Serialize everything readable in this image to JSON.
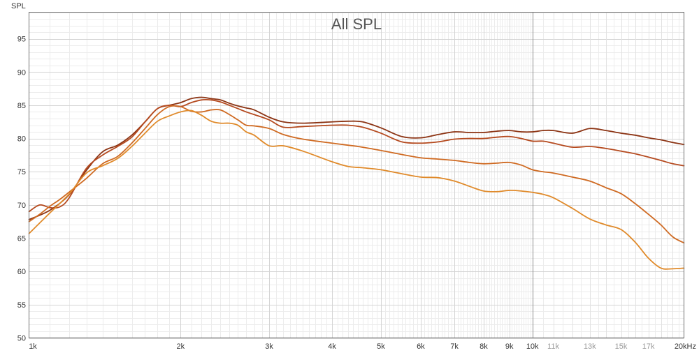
{
  "chart_data": {
    "type": "line",
    "title": "All SPL",
    "ylabel": "SPL",
    "xlabel": "",
    "x_scale": "log",
    "xlim": [
      1000,
      20000
    ],
    "ylim": [
      50,
      99
    ],
    "grid": true,
    "legend": "none",
    "y_ticks": [
      {
        "value": 50,
        "label": "50"
      },
      {
        "value": 55,
        "label": "55"
      },
      {
        "value": 60,
        "label": "60"
      },
      {
        "value": 65,
        "label": "65"
      },
      {
        "value": 70,
        "label": "70"
      },
      {
        "value": 75,
        "label": "75"
      },
      {
        "value": 80,
        "label": "80"
      },
      {
        "value": 85,
        "label": "85"
      },
      {
        "value": 90,
        "label": "90"
      },
      {
        "value": 95,
        "label": "95"
      }
    ],
    "x_ticks": [
      {
        "value": 1000,
        "label": "1k",
        "style": "normal"
      },
      {
        "value": 2000,
        "label": "2k",
        "style": "normal"
      },
      {
        "value": 3000,
        "label": "3k",
        "style": "normal"
      },
      {
        "value": 4000,
        "label": "4k",
        "style": "normal"
      },
      {
        "value": 5000,
        "label": "5k",
        "style": "normal"
      },
      {
        "value": 6000,
        "label": "6k",
        "style": "normal"
      },
      {
        "value": 7000,
        "label": "7k",
        "style": "normal"
      },
      {
        "value": 8000,
        "label": "8k",
        "style": "normal"
      },
      {
        "value": 9000,
        "label": "9k",
        "style": "normal"
      },
      {
        "value": 10000,
        "label": "10k",
        "style": "normal"
      },
      {
        "value": 11000,
        "label": "11k",
        "style": "light"
      },
      {
        "value": 13000,
        "label": "13k",
        "style": "light"
      },
      {
        "value": 15000,
        "label": "15k",
        "style": "light"
      },
      {
        "value": 17000,
        "label": "17k",
        "style": "light"
      },
      {
        "value": 20000,
        "label": "20kHz",
        "style": "normal"
      }
    ],
    "series": [
      {
        "color": "#8c3414",
        "x": [
          1000,
          1100,
          1200,
          1300,
          1400,
          1500,
          1600,
          1700,
          1800,
          1900,
          2000,
          2100,
          2200,
          2300,
          2400,
          2500,
          2600,
          2700,
          2800,
          3000,
          3200,
          3500,
          4000,
          4300,
          4600,
          5000,
          5500,
          6000,
          6500,
          7000,
          7500,
          8000,
          8500,
          9000,
          9500,
          10000,
          10500,
          11000,
          12000,
          13000,
          14000,
          15000,
          16000,
          17000,
          18000,
          19000,
          20000
        ],
        "values": [
          67.8,
          69.2,
          71.5,
          75.2,
          78.0,
          79.0,
          80.5,
          82.5,
          84.5,
          85.0,
          85.4,
          86.0,
          86.2,
          86.0,
          85.8,
          85.3,
          84.9,
          84.6,
          84.3,
          83.2,
          82.5,
          82.3,
          82.5,
          82.6,
          82.5,
          81.6,
          80.3,
          80.1,
          80.6,
          81.0,
          80.9,
          80.9,
          81.1,
          81.2,
          81.0,
          81.0,
          81.2,
          81.2,
          80.8,
          81.5,
          81.2,
          80.8,
          80.5,
          80.1,
          79.8,
          79.4,
          79.1
        ]
      },
      {
        "color": "#b54a1f",
        "x": [
          1000,
          1050,
          1100,
          1150,
          1200,
          1300,
          1400,
          1500,
          1600,
          1700,
          1800,
          1900,
          2000,
          2100,
          2200,
          2300,
          2400,
          2500,
          2600,
          2700,
          2800,
          3000,
          3200,
          3500,
          4000,
          4300,
          4600,
          5000,
          5500,
          6000,
          6500,
          7000,
          7500,
          8000,
          8500,
          9000,
          9500,
          10000,
          10500,
          11000,
          12000,
          13000,
          14000,
          15000,
          16000,
          17000,
          18000,
          19000,
          20000
        ],
        "values": [
          69.0,
          70.0,
          69.6,
          69.7,
          71.0,
          75.5,
          77.5,
          78.8,
          80.2,
          82.5,
          84.5,
          85.0,
          84.8,
          85.4,
          85.8,
          85.8,
          85.5,
          85.0,
          84.5,
          84.0,
          83.6,
          82.8,
          81.7,
          81.8,
          82.0,
          82.0,
          81.7,
          80.8,
          79.5,
          79.3,
          79.5,
          79.9,
          80.0,
          80.0,
          80.2,
          80.3,
          80.0,
          79.6,
          79.6,
          79.3,
          78.7,
          78.8,
          78.5,
          78.1,
          77.7,
          77.2,
          76.7,
          76.2,
          75.9
        ]
      },
      {
        "color": "#cf6a22",
        "x": [
          1000,
          1050,
          1100,
          1150,
          1200,
          1300,
          1400,
          1500,
          1600,
          1700,
          1800,
          1900,
          2000,
          2100,
          2200,
          2300,
          2400,
          2500,
          2600,
          2700,
          2800,
          3000,
          3200,
          3500,
          4000,
          4500,
          5000,
          5500,
          6000,
          6500,
          7000,
          7500,
          8000,
          8500,
          9000,
          9500,
          10000,
          10500,
          11000,
          12000,
          13000,
          14000,
          15000,
          16000,
          17000,
          18000,
          19000,
          20000
        ],
        "values": [
          67.5,
          68.6,
          69.8,
          70.8,
          71.9,
          74.0,
          76.2,
          77.3,
          79.3,
          81.5,
          83.6,
          84.8,
          84.8,
          84.1,
          84.0,
          84.3,
          84.3,
          83.6,
          82.8,
          82.0,
          81.9,
          81.5,
          80.6,
          79.9,
          79.3,
          78.8,
          78.2,
          77.6,
          77.1,
          76.9,
          76.7,
          76.4,
          76.2,
          76.3,
          76.4,
          76.0,
          75.3,
          75.0,
          74.8,
          74.2,
          73.6,
          72.6,
          71.7,
          70.2,
          68.6,
          67.0,
          65.2,
          64.3
        ]
      },
      {
        "color": "#e08a2a",
        "x": [
          1000,
          1100,
          1200,
          1300,
          1400,
          1500,
          1600,
          1700,
          1800,
          1900,
          2000,
          2100,
          2200,
          2300,
          2400,
          2500,
          2600,
          2700,
          2800,
          3000,
          3200,
          3500,
          4000,
          4300,
          4600,
          5000,
          5500,
          6000,
          6500,
          7000,
          7500,
          8000,
          8500,
          9000,
          9500,
          10000,
          10500,
          11000,
          12000,
          13000,
          14000,
          15000,
          16000,
          17000,
          18000,
          19000,
          20000
        ],
        "values": [
          65.7,
          68.8,
          71.6,
          74.8,
          75.9,
          77.0,
          78.8,
          80.8,
          82.6,
          83.4,
          84.0,
          84.2,
          83.5,
          82.6,
          82.3,
          82.3,
          82.0,
          81.0,
          80.5,
          78.9,
          78.9,
          78.1,
          76.5,
          75.8,
          75.6,
          75.3,
          74.7,
          74.2,
          74.1,
          73.6,
          72.8,
          72.1,
          72.0,
          72.2,
          72.1,
          71.9,
          71.6,
          71.1,
          69.5,
          67.9,
          67.0,
          66.3,
          64.4,
          62.0,
          60.5,
          60.4,
          60.5
        ]
      }
    ]
  }
}
